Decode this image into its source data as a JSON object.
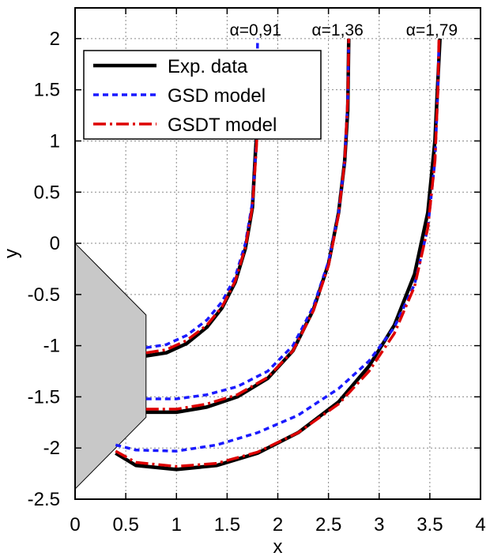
{
  "chart_data": {
    "type": "line",
    "xlabel": "x",
    "ylabel": "y",
    "xlim": [
      0,
      4
    ],
    "ylim": [
      -2.5,
      2.3
    ],
    "x_ticks": [
      "0",
      "0.5",
      "1",
      "1.5",
      "2",
      "2.5",
      "3",
      "3.5",
      "4"
    ],
    "y_ticks": [
      "2",
      "1.5",
      "1",
      "0.5",
      "0",
      "-0.5",
      "-1",
      "-1.5",
      "-2",
      "-2.5"
    ],
    "grid": true,
    "legend_position": "top-left",
    "annotations": [
      {
        "text": "α=0,91",
        "x": 1.78,
        "y": 2.1
      },
      {
        "text": "α=1,36",
        "x": 2.59,
        "y": 2.1
      },
      {
        "text": "α=1,79",
        "x": 3.52,
        "y": 2.1
      }
    ],
    "body_polygon": [
      [
        0,
        0
      ],
      [
        0.7,
        -0.7
      ],
      [
        0.7,
        -1.7
      ],
      [
        0,
        -2.4
      ]
    ],
    "series": [
      {
        "name": "Exp. data",
        "color": "#000000",
        "style": "solid",
        "curves": [
          [
            [
              0.7,
              -1.1
            ],
            [
              0.9,
              -1.07
            ],
            [
              1.1,
              -0.98
            ],
            [
              1.3,
              -0.82
            ],
            [
              1.45,
              -0.63
            ],
            [
              1.58,
              -0.38
            ],
            [
              1.68,
              -0.05
            ],
            [
              1.75,
              0.35
            ],
            [
              1.78,
              0.9
            ],
            [
              1.8,
              1.2
            ]
          ],
          [
            [
              0.7,
              -1.65
            ],
            [
              1.0,
              -1.65
            ],
            [
              1.3,
              -1.6
            ],
            [
              1.6,
              -1.5
            ],
            [
              1.9,
              -1.32
            ],
            [
              2.15,
              -1.05
            ],
            [
              2.35,
              -0.65
            ],
            [
              2.5,
              -0.2
            ],
            [
              2.6,
              0.3
            ],
            [
              2.66,
              0.8
            ],
            [
              2.69,
              1.3
            ],
            [
              2.7,
              2.0
            ]
          ],
          [
            [
              0.4,
              -2.05
            ],
            [
              0.6,
              -2.17
            ],
            [
              1.0,
              -2.21
            ],
            [
              1.4,
              -2.17
            ],
            [
              1.8,
              -2.05
            ],
            [
              2.2,
              -1.85
            ],
            [
              2.6,
              -1.55
            ],
            [
              2.9,
              -1.2
            ],
            [
              3.15,
              -0.8
            ],
            [
              3.35,
              -0.3
            ],
            [
              3.48,
              0.3
            ],
            [
              3.55,
              1.0
            ],
            [
              3.58,
              1.6
            ],
            [
              3.6,
              2.0
            ]
          ]
        ]
      },
      {
        "name": "GSD   model",
        "color": "#1a1aff",
        "style": "dashed",
        "curves": [
          [
            [
              0.7,
              -1.02
            ],
            [
              0.9,
              -0.99
            ],
            [
              1.1,
              -0.9
            ],
            [
              1.3,
              -0.75
            ],
            [
              1.45,
              -0.57
            ],
            [
              1.58,
              -0.33
            ],
            [
              1.68,
              0.0
            ],
            [
              1.75,
              0.4
            ],
            [
              1.79,
              1.0
            ],
            [
              1.8,
              2.0
            ]
          ],
          [
            [
              0.7,
              -1.52
            ],
            [
              1.0,
              -1.52
            ],
            [
              1.3,
              -1.48
            ],
            [
              1.6,
              -1.4
            ],
            [
              1.9,
              -1.25
            ],
            [
              2.15,
              -1.0
            ],
            [
              2.35,
              -0.62
            ],
            [
              2.5,
              -0.18
            ],
            [
              2.6,
              0.3
            ],
            [
              2.66,
              0.8
            ],
            [
              2.69,
              1.4
            ],
            [
              2.7,
              2.0
            ]
          ],
          [
            [
              0.4,
              -1.97
            ],
            [
              0.6,
              -2.02
            ],
            [
              1.0,
              -2.03
            ],
            [
              1.4,
              -1.97
            ],
            [
              1.8,
              -1.85
            ],
            [
              2.2,
              -1.68
            ],
            [
              2.6,
              -1.42
            ],
            [
              2.9,
              -1.15
            ],
            [
              3.15,
              -0.82
            ],
            [
              3.35,
              -0.4
            ],
            [
              3.48,
              0.15
            ],
            [
              3.55,
              0.8
            ],
            [
              3.58,
              1.5
            ],
            [
              3.59,
              2.0
            ]
          ]
        ]
      },
      {
        "name": "GSDT model",
        "color": "#dd0000",
        "style": "dashdot",
        "curves": [
          [
            [
              0.7,
              -1.07
            ],
            [
              0.9,
              -1.04
            ],
            [
              1.1,
              -0.95
            ],
            [
              1.3,
              -0.8
            ],
            [
              1.45,
              -0.62
            ],
            [
              1.58,
              -0.37
            ],
            [
              1.68,
              -0.04
            ],
            [
              1.75,
              0.36
            ],
            [
              1.79,
              0.95
            ],
            [
              1.8,
              1.3
            ]
          ],
          [
            [
              0.7,
              -1.62
            ],
            [
              1.0,
              -1.62
            ],
            [
              1.3,
              -1.57
            ],
            [
              1.6,
              -1.48
            ],
            [
              1.9,
              -1.31
            ],
            [
              2.15,
              -1.05
            ],
            [
              2.35,
              -0.66
            ],
            [
              2.5,
              -0.22
            ],
            [
              2.6,
              0.28
            ],
            [
              2.66,
              0.8
            ],
            [
              2.69,
              1.4
            ],
            [
              2.7,
              2.0
            ]
          ],
          [
            [
              0.4,
              -2.03
            ],
            [
              0.6,
              -2.14
            ],
            [
              1.0,
              -2.18
            ],
            [
              1.4,
              -2.15
            ],
            [
              1.8,
              -2.04
            ],
            [
              2.2,
              -1.85
            ],
            [
              2.6,
              -1.57
            ],
            [
              2.9,
              -1.25
            ],
            [
              3.15,
              -0.88
            ],
            [
              3.35,
              -0.42
            ],
            [
              3.48,
              0.15
            ],
            [
              3.55,
              0.8
            ],
            [
              3.58,
              1.5
            ],
            [
              3.59,
              2.0
            ]
          ]
        ]
      }
    ]
  }
}
